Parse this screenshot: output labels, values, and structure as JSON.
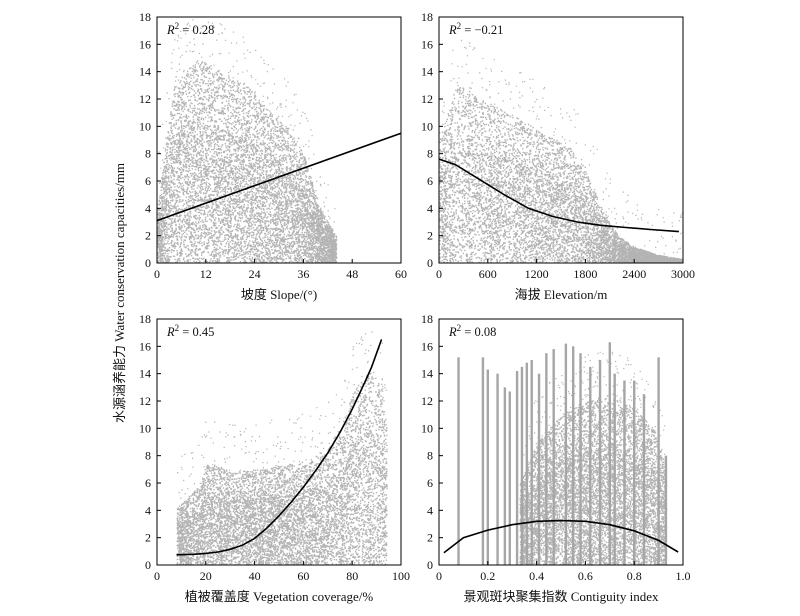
{
  "figure": {
    "ylabel": "水源涵养能力 Water conservation capacities/mm"
  },
  "chart_data": [
    {
      "type": "scatter",
      "xlabel": "坡度 Slope/(°)",
      "ylabel": "水源涵养能力 Water conservation capacities/mm",
      "xlim": [
        0,
        60
      ],
      "ylim": [
        0,
        18
      ],
      "xticks": [
        "0",
        "12",
        "24",
        "36",
        "48",
        "60"
      ],
      "yticks": [
        "0",
        "2",
        "4",
        "6",
        "8",
        "10",
        "12",
        "14",
        "16",
        "18"
      ],
      "annotation": {
        "prefix": "R",
        "sup": "2",
        "text": " = 0.28"
      },
      "fit": {
        "x": [
          0,
          60
        ],
        "y": [
          3.1,
          9.5
        ]
      },
      "cloud": [
        [
          0,
          0,
          4
        ],
        [
          4,
          0,
          13
        ],
        [
          10,
          0,
          15
        ],
        [
          16,
          0,
          14
        ],
        [
          22,
          0,
          13
        ],
        [
          28,
          0,
          11
        ],
        [
          32,
          0,
          10
        ],
        [
          36,
          0,
          8
        ],
        [
          40,
          0,
          4
        ],
        [
          44,
          0,
          2
        ]
      ],
      "point_color": "#a6a6a6",
      "line_color": "#000000"
    },
    {
      "type": "scatter",
      "xlabel": "海拔 Elevation/m",
      "ylabel": "水源涵养能力 Water conservation capacities/mm",
      "xlim": [
        0,
        3000
      ],
      "ylim": [
        0,
        18
      ],
      "xticks": [
        "0",
        "600",
        "1200",
        "1800",
        "2400",
        "3000"
      ],
      "yticks": [
        "0",
        "2",
        "4",
        "6",
        "8",
        "10",
        "12",
        "14",
        "16",
        "18"
      ],
      "annotation": {
        "prefix": "R",
        "sup": "2",
        "text": " = −0.21"
      },
      "fit": {
        "x": [
          0,
          200,
          500,
          800,
          1100,
          1400,
          1700,
          2000,
          2300,
          2600,
          2950
        ],
        "y": [
          7.6,
          7.2,
          6.1,
          5.0,
          4.0,
          3.4,
          3.0,
          2.75,
          2.6,
          2.45,
          2.3
        ]
      },
      "cloud": [
        [
          0,
          0,
          9
        ],
        [
          200,
          0,
          13
        ],
        [
          300,
          0,
          13
        ],
        [
          500,
          0,
          12
        ],
        [
          700,
          0,
          11.5
        ],
        [
          1000,
          0,
          10.5
        ],
        [
          1300,
          0,
          9.5
        ],
        [
          1600,
          0,
          8.5
        ],
        [
          1800,
          0,
          7
        ],
        [
          2000,
          0,
          4
        ],
        [
          2200,
          0,
          2
        ],
        [
          2400,
          0,
          1.2
        ],
        [
          2700,
          0,
          0.6
        ],
        [
          3000,
          0,
          0.3
        ]
      ],
      "point_color": "#a6a6a6",
      "line_color": "#000000"
    },
    {
      "type": "scatter",
      "xlabel": "植被覆盖度 Vegetation coverage/%",
      "ylabel": "水源涵养能力 Water conservation capacities/mm",
      "xlim": [
        0,
        100
      ],
      "ylim": [
        0,
        18
      ],
      "xticks": [
        "0",
        "20",
        "40",
        "60",
        "80",
        "100"
      ],
      "yticks": [
        "0",
        "2",
        "4",
        "6",
        "8",
        "10",
        "12",
        "14",
        "16",
        "18"
      ],
      "annotation": {
        "prefix": "R",
        "sup": "2",
        "text": " = 0.45"
      },
      "fit": {
        "x": [
          8,
          15,
          20,
          25,
          30,
          35,
          40,
          45,
          50,
          55,
          60,
          65,
          70,
          75,
          80,
          85,
          88,
          92
        ],
        "y": [
          0.75,
          0.78,
          0.85,
          0.95,
          1.15,
          1.45,
          1.95,
          2.7,
          3.6,
          4.6,
          5.7,
          6.9,
          8.2,
          9.7,
          11.4,
          13.3,
          14.5,
          16.5
        ]
      },
      "cloud": [
        [
          8,
          0,
          4.2
        ],
        [
          18,
          0,
          6
        ],
        [
          20,
          0,
          7.4
        ],
        [
          25,
          0,
          7.3
        ],
        [
          30,
          0,
          6.8
        ],
        [
          40,
          0,
          7
        ],
        [
          50,
          0,
          7.3
        ],
        [
          60,
          0,
          7.6
        ],
        [
          70,
          0,
          8.6
        ],
        [
          76,
          0,
          10.5
        ],
        [
          80,
          0,
          12.5
        ],
        [
          84,
          0,
          13.8
        ],
        [
          88,
          0,
          14.2
        ],
        [
          92,
          0,
          13
        ],
        [
          94,
          0,
          10
        ]
      ],
      "point_color": "#a6a6a6",
      "line_color": "#000000"
    },
    {
      "type": "scatter",
      "xlabel": "景观斑块聚集指数  Contiguity index",
      "ylabel": "水源涵养能力 Water conservation capacities/mm",
      "xlim": [
        0,
        1
      ],
      "ylim": [
        0,
        18
      ],
      "xticks": [
        "0",
        "0.2",
        "0.4",
        "0.6",
        "0.8",
        "1.0"
      ],
      "yticks": [
        "0",
        "2",
        "4",
        "6",
        "8",
        "10",
        "12",
        "14",
        "16",
        "18"
      ],
      "annotation": {
        "prefix": "R",
        "sup": "2",
        "text": " = 0.08"
      },
      "fit": {
        "x": [
          0.02,
          0.1,
          0.2,
          0.3,
          0.4,
          0.5,
          0.6,
          0.7,
          0.8,
          0.9,
          0.98
        ],
        "y": [
          0.9,
          2.0,
          2.55,
          2.95,
          3.2,
          3.25,
          3.2,
          2.95,
          2.5,
          1.8,
          0.95
        ]
      },
      "cloud": [
        [
          0.33,
          0,
          6
        ],
        [
          0.4,
          0,
          9
        ],
        [
          0.5,
          0,
          11
        ],
        [
          0.6,
          0,
          12
        ],
        [
          0.7,
          0,
          12.5
        ],
        [
          0.8,
          0,
          11.5
        ],
        [
          0.88,
          0,
          10
        ],
        [
          0.93,
          0,
          7
        ]
      ],
      "spikes": [
        [
          0.08,
          15.2
        ],
        [
          0.18,
          15.2
        ],
        [
          0.2,
          14.3
        ],
        [
          0.24,
          14
        ],
        [
          0.27,
          13
        ],
        [
          0.29,
          12.7
        ],
        [
          0.32,
          14.2
        ],
        [
          0.34,
          14.5
        ],
        [
          0.36,
          14.8
        ],
        [
          0.38,
          15
        ],
        [
          0.41,
          14
        ],
        [
          0.44,
          15.5
        ],
        [
          0.47,
          15.8
        ],
        [
          0.52,
          16.2
        ],
        [
          0.55,
          16
        ],
        [
          0.58,
          15.5
        ],
        [
          0.62,
          14.5
        ],
        [
          0.66,
          15
        ],
        [
          0.7,
          16.3
        ],
        [
          0.72,
          14
        ],
        [
          0.76,
          13.5
        ],
        [
          0.8,
          13.5
        ],
        [
          0.84,
          12.5
        ],
        [
          0.9,
          15.2
        ],
        [
          0.93,
          8
        ]
      ],
      "point_color": "#a6a6a6",
      "line_color": "#000000"
    }
  ]
}
